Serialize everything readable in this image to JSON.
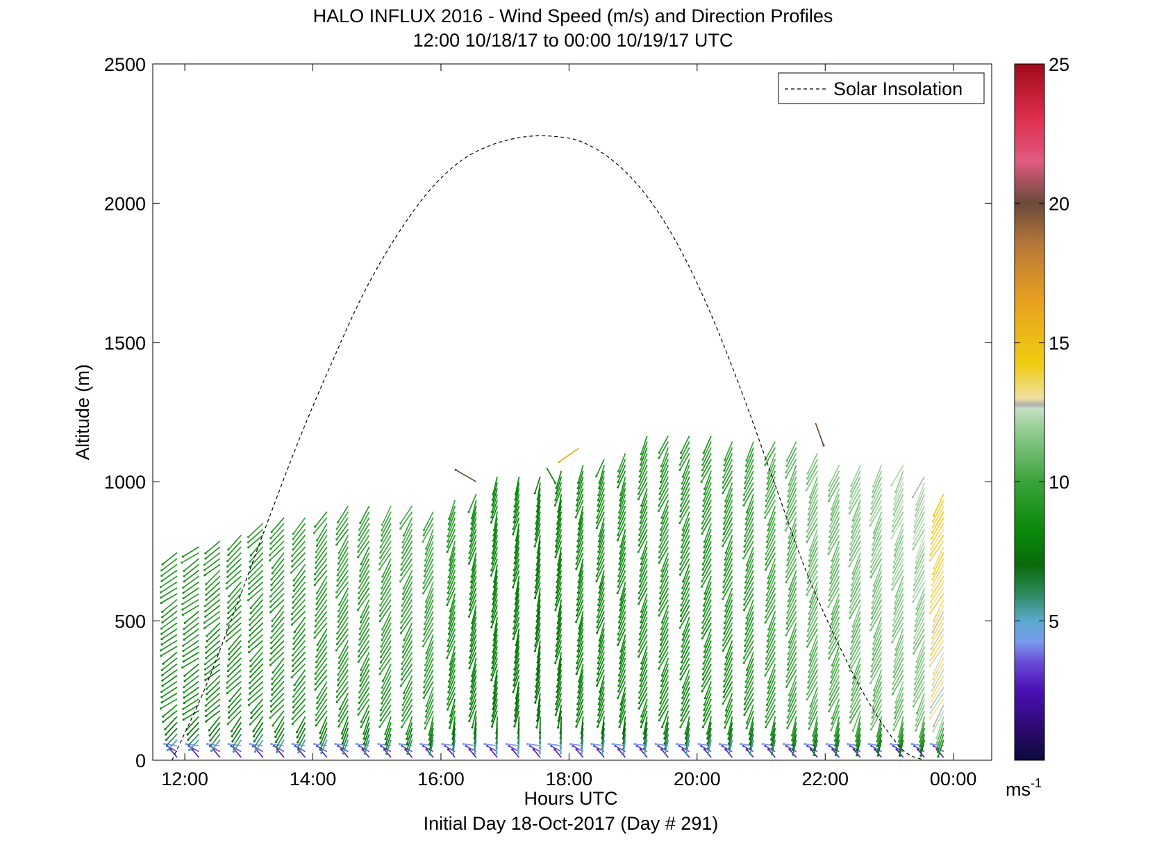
{
  "chart_data": {
    "type": "quiver",
    "title": "HALO INFLUX 2016 - Wind Speed (m/s) and Direction Profiles",
    "subtitle": "12:00 10/18/17 to 00:00 10/19/17  UTC",
    "xlabel": "Hours UTC",
    "xlabel2": "Initial Day 18-Oct-2017 (Day # 291)",
    "ylabel": "Altitude (m)",
    "xlim": [
      11.5,
      24.6
    ],
    "ylim": [
      0,
      2500
    ],
    "x_ticks": [
      12,
      14,
      16,
      18,
      20,
      22,
      24
    ],
    "x_tick_labels": [
      "12:00",
      "14:00",
      "16:00",
      "18:00",
      "20:00",
      "22:00",
      "00:00"
    ],
    "y_ticks": [
      0,
      500,
      1000,
      1500,
      2000,
      2500
    ],
    "y_tick_labels": [
      "0",
      "500",
      "1000",
      "1500",
      "2000",
      "2500"
    ],
    "legend": {
      "position": "top-right",
      "entries": [
        {
          "label": "Solar Insolation",
          "style": "dashed"
        }
      ]
    },
    "colorbar": {
      "min": 0,
      "max": 25,
      "ticks": [
        5,
        10,
        15,
        20,
        25
      ],
      "tick_labels": [
        "5",
        "10",
        "15",
        "20",
        "25"
      ],
      "unit_label": "ms",
      "unit_exp": "-1"
    },
    "solar_insolation_curve": {
      "x": [
        11.8,
        12.3,
        12.8,
        13.3,
        13.8,
        14.3,
        14.8,
        15.3,
        15.8,
        16.3,
        16.8,
        17.3,
        17.75,
        18.2,
        18.7,
        19.2,
        19.7,
        20.2,
        20.7,
        21.2,
        21.7,
        22.2,
        22.7,
        23.2,
        23.55
      ],
      "y": [
        0,
        250,
        550,
        860,
        1160,
        1430,
        1680,
        1880,
        2040,
        2150,
        2210,
        2238,
        2240,
        2220,
        2150,
        2030,
        1850,
        1610,
        1320,
        1000,
        680,
        420,
        200,
        40,
        0
      ]
    },
    "wind_profiles": [
      {
        "time": 11.88,
        "top": 790,
        "speed": 9.0,
        "dir": 235
      },
      {
        "time": 12.22,
        "top": 800,
        "speed": 9.0,
        "dir": 235
      },
      {
        "time": 12.55,
        "top": 830,
        "speed": 9.0,
        "dir": 230
      },
      {
        "time": 12.88,
        "top": 850,
        "speed": 9.0,
        "dir": 225
      },
      {
        "time": 13.22,
        "top": 880,
        "speed": 9.0,
        "dir": 225
      },
      {
        "time": 13.55,
        "top": 900,
        "speed": 9.2,
        "dir": 222
      },
      {
        "time": 13.88,
        "top": 910,
        "speed": 9.2,
        "dir": 220
      },
      {
        "time": 14.22,
        "top": 920,
        "speed": 9.3,
        "dir": 215
      },
      {
        "time": 14.55,
        "top": 950,
        "speed": 9.4,
        "dir": 212
      },
      {
        "time": 14.88,
        "top": 950,
        "speed": 9.5,
        "dir": 210
      },
      {
        "time": 15.22,
        "top": 950,
        "speed": 9.8,
        "dir": 210
      },
      {
        "time": 15.55,
        "top": 950,
        "speed": 9.8,
        "dir": 210
      },
      {
        "time": 15.88,
        "top": 920,
        "speed": 10.0,
        "dir": 205
      },
      {
        "time": 16.22,
        "top": 960,
        "speed": 9.0,
        "dir": 200
      },
      {
        "time": 16.55,
        "top": 1000,
        "speed": 8.5,
        "dir": 198
      },
      {
        "time": 16.88,
        "top": 1060,
        "speed": 8.2,
        "dir": 195
      },
      {
        "time": 17.22,
        "top": 1060,
        "speed": 8.0,
        "dir": 195
      },
      {
        "time": 17.55,
        "top": 1060,
        "speed": 7.8,
        "dir": 193
      },
      {
        "time": 17.88,
        "top": 1080,
        "speed": 8.0,
        "dir": 195
      },
      {
        "time": 18.22,
        "top": 1100,
        "speed": 8.3,
        "dir": 198
      },
      {
        "time": 18.55,
        "top": 1120,
        "speed": 8.5,
        "dir": 200
      },
      {
        "time": 18.88,
        "top": 1140,
        "speed": 8.6,
        "dir": 200
      },
      {
        "time": 19.22,
        "top": 1200,
        "speed": 8.8,
        "dir": 203
      },
      {
        "time": 19.55,
        "top": 1210,
        "speed": 9.0,
        "dir": 205
      },
      {
        "time": 19.88,
        "top": 1210,
        "speed": 9.0,
        "dir": 205
      },
      {
        "time": 20.22,
        "top": 1210,
        "speed": 9.0,
        "dir": 205
      },
      {
        "time": 20.55,
        "top": 1170,
        "speed": 9.2,
        "dir": 205
      },
      {
        "time": 20.88,
        "top": 1170,
        "speed": 9.5,
        "dir": 205
      },
      {
        "time": 21.22,
        "top": 1170,
        "speed": 10.0,
        "dir": 205
      },
      {
        "time": 21.55,
        "top": 1170,
        "speed": 10.5,
        "dir": 205
      },
      {
        "time": 21.88,
        "top": 1130,
        "speed": 11.0,
        "dir": 205
      },
      {
        "time": 22.22,
        "top": 1100,
        "speed": 11.0,
        "dir": 205
      },
      {
        "time": 22.55,
        "top": 1090,
        "speed": 11.3,
        "dir": 205
      },
      {
        "time": 22.88,
        "top": 1090,
        "speed": 11.5,
        "dir": 205
      },
      {
        "time": 23.22,
        "top": 1090,
        "speed": 11.8,
        "dir": 205
      },
      {
        "time": 23.55,
        "top": 1050,
        "speed": 12.0,
        "dir": 205
      },
      {
        "time": 23.85,
        "top": 1000,
        "speed": 13.5,
        "dir": 210
      }
    ],
    "outlier_vectors": [
      {
        "time": 16.55,
        "alt": 1000,
        "speed": 20.0,
        "dir": 300
      },
      {
        "time": 17.65,
        "alt": 1050,
        "speed": 8.0,
        "dir": 150
      },
      {
        "time": 18.15,
        "alt": 1120,
        "speed": 16.0,
        "dir": 235
      },
      {
        "time": 21.85,
        "alt": 1210,
        "speed": 20.0,
        "dir": 160
      }
    ]
  }
}
